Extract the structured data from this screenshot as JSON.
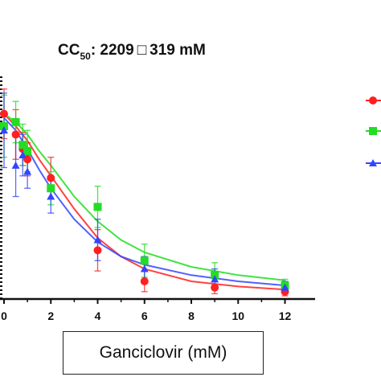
{
  "chart_data": {
    "type": "scatter",
    "title_prefix": "CC",
    "title_subscript": "50",
    "title_suffix": ": 2209",
    "title_symbol": "□",
    "title_value": "319 mM",
    "xlabel": "Ganciclovir (mM)",
    "ylabel": "",
    "xlim": [
      0,
      12.6
    ],
    "ylim": [
      0,
      110
    ],
    "x_ticks": [
      0,
      2,
      4,
      6,
      8,
      10,
      12
    ],
    "x_tick_labels": [
      "0",
      "2",
      "4",
      "6",
      "8",
      "10",
      "12"
    ],
    "grid": false,
    "legend_placement": "right",
    "series": [
      {
        "color": "#ff2020",
        "marker": "circle",
        "x": [
          0,
          0.5,
          0.8,
          1,
          2,
          4,
          6,
          9,
          12
        ],
        "y": [
          88,
          78,
          71,
          66,
          57,
          22,
          7,
          4,
          2
        ],
        "err": [
          12,
          12,
          8,
          8,
          10,
          10,
          5,
          3,
          2
        ],
        "fit": [
          [
            0,
            88
          ],
          [
            0.5,
            82
          ],
          [
            1,
            75
          ],
          [
            1.5,
            66
          ],
          [
            2,
            58
          ],
          [
            3,
            42
          ],
          [
            4,
            28
          ],
          [
            5,
            19
          ],
          [
            6,
            13
          ],
          [
            8,
            7
          ],
          [
            10,
            4.5
          ],
          [
            12,
            3
          ]
        ]
      },
      {
        "color": "#22dd22",
        "marker": "square",
        "x": [
          0,
          0.5,
          0.8,
          1,
          2,
          4,
          6,
          9,
          12
        ],
        "y": [
          82,
          84,
          73,
          70,
          52,
          43,
          17,
          10,
          5
        ],
        "err": [
          15,
          10,
          10,
          10,
          8,
          10,
          8,
          6,
          3
        ],
        "fit": [
          [
            0,
            88
          ],
          [
            0.5,
            84
          ],
          [
            1,
            78
          ],
          [
            1.5,
            70
          ],
          [
            2,
            63
          ],
          [
            3,
            48
          ],
          [
            4,
            36
          ],
          [
            5,
            27
          ],
          [
            6,
            21
          ],
          [
            8,
            14
          ],
          [
            10,
            10
          ],
          [
            12,
            7.5
          ]
        ]
      },
      {
        "color": "#3344ff",
        "marker": "triangle",
        "x": [
          0,
          0.5,
          0.8,
          1,
          2,
          4,
          6,
          9,
          12
        ],
        "y": [
          80,
          63,
          68,
          60,
          48,
          27,
          13,
          8,
          4
        ],
        "err": [
          18,
          15,
          10,
          8,
          8,
          10,
          6,
          5,
          3
        ],
        "fit": [
          [
            0,
            86
          ],
          [
            0.5,
            80
          ],
          [
            1,
            71
          ],
          [
            1.5,
            61
          ],
          [
            2,
            52
          ],
          [
            3,
            37
          ],
          [
            4,
            26
          ],
          [
            5,
            19
          ],
          [
            6,
            15
          ],
          [
            8,
            10
          ],
          [
            10,
            7
          ],
          [
            12,
            5
          ]
        ]
      }
    ]
  }
}
